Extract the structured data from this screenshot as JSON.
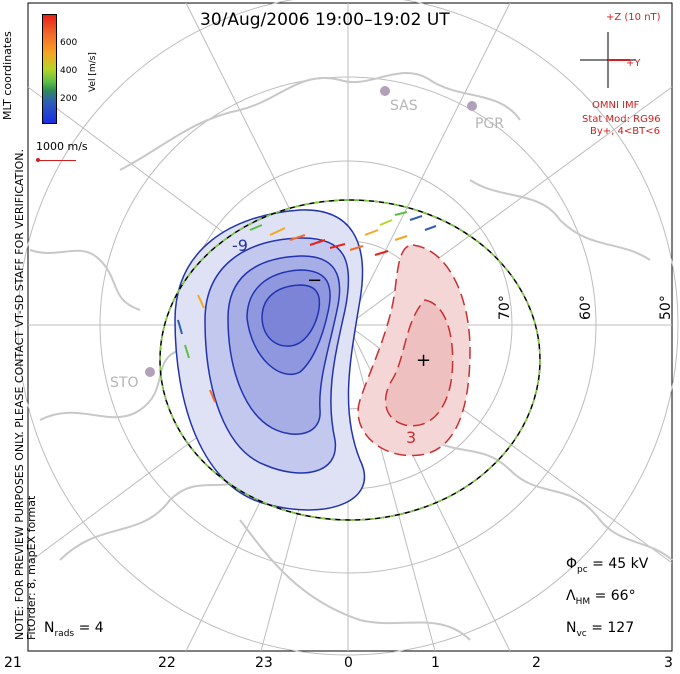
{
  "title": "30/Aug/2006 19:00–19:02 UT",
  "side_note": {
    "line1": "NOTE: FOR PREVIEW PURPOSES ONLY. PLEASE CONTACT VT-SD STAFF FOR VERIFICATION.",
    "line2": "FitOrder: 8, mapEX format"
  },
  "coordinate_label": "MLT coordinates",
  "velocity_legend": {
    "unit": "Vel [m/s]",
    "ticks": [
      "600",
      "400",
      "200"
    ],
    "colors": [
      "#e8201a",
      "#f5a623",
      "#5bbf45",
      "#1a2ee6"
    ]
  },
  "scale_label": "1000 m/s",
  "imf": {
    "z_label": "+Z (10 nT)",
    "y_label": "+Y",
    "source": "OMNI IMF",
    "stat_mod": "Stat Mod: RG96",
    "condition": "By+, 4<BT<6"
  },
  "stations": [
    "SAS",
    "PGR",
    "STO"
  ],
  "latitude_labels": [
    "70°",
    "60°",
    "50°"
  ],
  "mlt_labels": [
    "21",
    "22",
    "23",
    "0",
    "1",
    "2",
    "3"
  ],
  "contour_markers": {
    "minus": "−",
    "plus": "+",
    "neg_value": "-9",
    "pos_value": "3"
  },
  "stats": {
    "phi_pc": {
      "symbol": "Φ",
      "sub": "pc",
      "value": "= 45 kV"
    },
    "lambda_hm": {
      "symbol": "Λ",
      "sub": "HM",
      "value": "= 66°"
    },
    "n_vc": {
      "symbol": "N",
      "sub": "vc",
      "value": "= 127"
    },
    "n_rads": {
      "symbol": "N",
      "sub": "rads",
      "value": "= 4"
    }
  },
  "colors": {
    "negative_cell": "#2233b0",
    "positive_cell": "#c83030",
    "boundary_dash": "#7fcf3f",
    "map_lines": "#c8c8c8",
    "imf_color": "#d02020"
  }
}
